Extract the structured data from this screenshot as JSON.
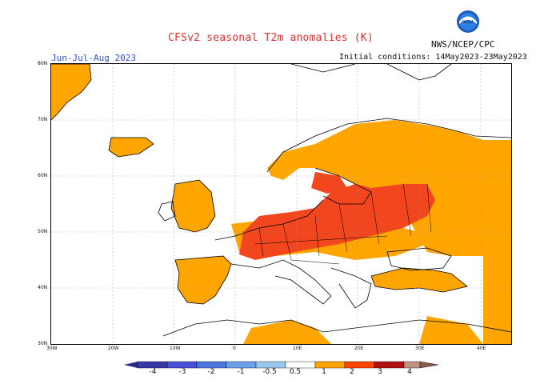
{
  "header": {
    "title": "CFSv2 seasonal T2m anomalies (K)",
    "period": "Jun-Jul-Aug 2023",
    "initial_conditions": "Initial conditions: 14May2023-23May2023",
    "org": "NWS/NCEP/CPC",
    "logo_text": "NOAA"
  },
  "map": {
    "lat_labels": [
      "80N",
      "70N",
      "60N",
      "50N",
      "40N",
      "30N"
    ],
    "lon_labels": [
      "30W",
      "20W",
      "10W",
      "0",
      "10E",
      "20E",
      "30E",
      "40E"
    ],
    "extent": {
      "lon": [
        -30,
        45
      ],
      "lat": [
        30,
        80
      ]
    },
    "ocean_color": "#ffffff",
    "coast_color": "#000000"
  },
  "colorbar": {
    "labels": [
      "-4",
      "-3",
      "-2",
      "-1",
      "-0.5",
      "0.5",
      "1",
      "2",
      "3",
      "4"
    ],
    "colors": [
      "#3838a6",
      "#4a4fd8",
      "#4a78e0",
      "#68a0ea",
      "#98c8f0",
      "#ffffff",
      "#ffa500",
      "#ff4500",
      "#d01010",
      "#9a0c0c",
      "#c09080",
      "#8a5a46"
    ],
    "positive_colors": {
      "0.5-1": "#ffa500",
      "1-2": "#f54a1e",
      "2-3": "#c81414"
    },
    "negative_colors": {
      "-1--0.5": "#a0c8f0"
    }
  }
}
